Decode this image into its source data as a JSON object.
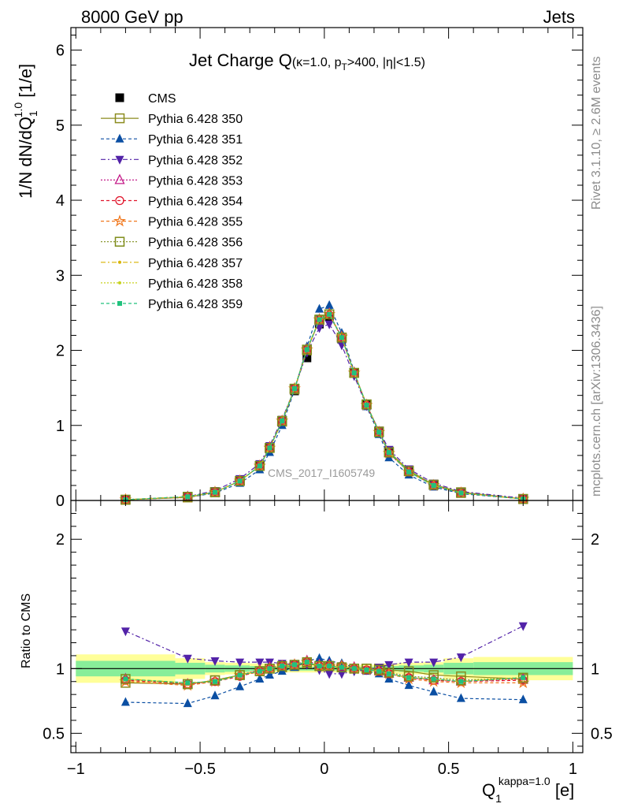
{
  "header": {
    "left": "8000 GeV pp",
    "right": "Jets"
  },
  "plot_title": {
    "main": "Jet Charge Q",
    "sub_kappa": "(κ=1.0, p",
    "sub_T": "T",
    "sub_rest": ">400, |η|<1.5)"
  },
  "axes": {
    "top_ylabel": "1/N dN/dQ",
    "top_ylabel_sub": "1",
    "top_ylabel_sup": "1.0",
    "top_ylabel_unit": " [1/e]",
    "bottom_ylabel": "Ratio to CMS",
    "xlabel_main": "Q",
    "xlabel_sub": "1",
    "xlabel_sup": "kappa=1.0",
    "xlabel_unit": " [e]"
  },
  "side_labels": {
    "rivet": "Rivet 3.1.10, ≥ 2.6M events",
    "mcplots": "mcplots.cern.ch [arXiv:1306.3436]"
  },
  "watermark": "CMS_2017_I1605749",
  "legend": [
    {
      "label": "CMS",
      "color": "#000000",
      "marker": "filled-square",
      "dash": "none"
    },
    {
      "label": "Pythia 6.428 350",
      "color": "#8c8c1f",
      "marker": "open-square",
      "dash": "solid"
    },
    {
      "label": "Pythia 6.428 351",
      "color": "#0b4fa3",
      "marker": "filled-triangle-up",
      "dash": "4,3"
    },
    {
      "label": "Pythia 6.428 352",
      "color": "#5222a8",
      "marker": "filled-triangle-down",
      "dash": "6,3,2,3"
    },
    {
      "label": "Pythia 6.428 353",
      "color": "#c41d8a",
      "marker": "open-triangle-up",
      "dash": "2,2"
    },
    {
      "label": "Pythia 6.428 354",
      "color": "#e0142b",
      "marker": "open-circle",
      "dash": "4,3"
    },
    {
      "label": "Pythia 6.428 355",
      "color": "#f0781e",
      "marker": "open-star",
      "dash": "4,3"
    },
    {
      "label": "Pythia 6.428 356",
      "color": "#7f8c1a",
      "marker": "open-square",
      "dash": "2,2"
    },
    {
      "label": "Pythia 6.428 357",
      "color": "#d9b400",
      "marker": "small-dot",
      "dash": "6,3,2,3"
    },
    {
      "label": "Pythia 6.428 358",
      "color": "#c8d21e",
      "marker": "small-dot",
      "dash": "2,2"
    },
    {
      "label": "Pythia 6.428 359",
      "color": "#21c27d",
      "marker": "filled-square-small",
      "dash": "4,3"
    }
  ],
  "chart_data": [
    {
      "type": "line",
      "panel": "main",
      "title": "Jet Charge Q(κ=1.0, pT>400, |η|<1.5)",
      "xlabel": "Q1^kappa=1.0 [e]",
      "ylabel": "1/N dN/dQ1^1.0 [1/e]",
      "xlim": [
        -1.02,
        1.04
      ],
      "ylim": [
        0,
        6.3
      ],
      "x_ticks": [
        -1,
        -0.5,
        0,
        0.5,
        1
      ],
      "x_tick_labels": [
        "−1",
        "−0.5",
        "0",
        "0.5",
        "1"
      ],
      "y_ticks": [
        0,
        1,
        2,
        3,
        4,
        5,
        6
      ],
      "y_tick_labels": [
        "0",
        "1",
        "2",
        "3",
        "4",
        "5",
        "6"
      ],
      "x": [
        -0.8,
        -0.55,
        -0.44,
        -0.34,
        -0.26,
        -0.22,
        -0.17,
        -0.12,
        -0.07,
        -0.02,
        0.02,
        0.07,
        0.12,
        0.17,
        0.22,
        0.26,
        0.34,
        0.44,
        0.55,
        0.8
      ],
      "series": [
        {
          "name": "CMS",
          "values": [
            0.01,
            0.05,
            0.12,
            0.27,
            0.47,
            0.7,
            1.05,
            1.46,
            1.9,
            2.35,
            2.45,
            2.15,
            1.7,
            1.28,
            0.92,
            0.66,
            0.4,
            0.22,
            0.11,
            0.02
          ]
        },
        {
          "name": "Pythia 6.428 350",
          "values": [
            0.01,
            0.04,
            0.11,
            0.26,
            0.46,
            0.7,
            1.05,
            1.48,
            2.0,
            2.4,
            2.48,
            2.17,
            1.7,
            1.28,
            0.92,
            0.65,
            0.4,
            0.21,
            0.11,
            0.02
          ]
        },
        {
          "name": "Pythia 6.428 351",
          "values": [
            0.01,
            0.04,
            0.1,
            0.23,
            0.41,
            0.64,
            1.0,
            1.47,
            2.05,
            2.55,
            2.6,
            2.23,
            1.72,
            1.25,
            0.88,
            0.57,
            0.34,
            0.18,
            0.09,
            0.02
          ]
        },
        {
          "name": "Pythia 6.428 352",
          "values": [
            0.01,
            0.05,
            0.13,
            0.29,
            0.49,
            0.73,
            1.08,
            1.49,
            1.97,
            2.3,
            2.35,
            2.07,
            1.66,
            1.26,
            0.93,
            0.68,
            0.42,
            0.23,
            0.12,
            0.03
          ]
        },
        {
          "name": "Pythia 6.428 353",
          "values": [
            0.01,
            0.05,
            0.11,
            0.26,
            0.46,
            0.71,
            1.06,
            1.49,
            2.01,
            2.41,
            2.49,
            2.18,
            1.7,
            1.27,
            0.91,
            0.63,
            0.38,
            0.2,
            0.1,
            0.02
          ]
        },
        {
          "name": "Pythia 6.428 354",
          "values": [
            0.01,
            0.05,
            0.11,
            0.26,
            0.46,
            0.7,
            1.06,
            1.49,
            2.01,
            2.4,
            2.47,
            2.17,
            1.7,
            1.27,
            0.91,
            0.63,
            0.38,
            0.2,
            0.1,
            0.02
          ]
        },
        {
          "name": "Pythia 6.428 355",
          "values": [
            0.01,
            0.04,
            0.11,
            0.26,
            0.46,
            0.7,
            1.06,
            1.49,
            2.01,
            2.41,
            2.48,
            2.18,
            1.7,
            1.27,
            0.91,
            0.63,
            0.38,
            0.2,
            0.1,
            0.02
          ]
        },
        {
          "name": "Pythia 6.428 356",
          "values": [
            0.01,
            0.05,
            0.11,
            0.26,
            0.46,
            0.7,
            1.06,
            1.49,
            2.01,
            2.41,
            2.48,
            2.17,
            1.7,
            1.28,
            0.91,
            0.64,
            0.39,
            0.21,
            0.1,
            0.02
          ]
        },
        {
          "name": "Pythia 6.428 357",
          "values": [
            0.01,
            0.05,
            0.11,
            0.26,
            0.46,
            0.7,
            1.06,
            1.49,
            2.01,
            2.41,
            2.48,
            2.17,
            1.7,
            1.27,
            0.91,
            0.64,
            0.38,
            0.2,
            0.1,
            0.02
          ]
        },
        {
          "name": "Pythia 6.428 358",
          "values": [
            0.01,
            0.05,
            0.11,
            0.26,
            0.46,
            0.7,
            1.06,
            1.49,
            2.01,
            2.41,
            2.48,
            2.17,
            1.7,
            1.27,
            0.91,
            0.64,
            0.38,
            0.2,
            0.1,
            0.02
          ]
        },
        {
          "name": "Pythia 6.428 359",
          "values": [
            0.01,
            0.05,
            0.11,
            0.26,
            0.46,
            0.7,
            1.06,
            1.49,
            2.01,
            2.41,
            2.48,
            2.17,
            1.7,
            1.27,
            0.91,
            0.64,
            0.38,
            0.2,
            0.1,
            0.02
          ]
        }
      ]
    },
    {
      "type": "line",
      "panel": "ratio",
      "ylabel": "Ratio to CMS",
      "xlim": [
        -1.02,
        1.04
      ],
      "ylim": [
        0.35,
        2.3
      ],
      "y_ticks": [
        0.5,
        1,
        2
      ],
      "y_tick_labels": [
        "0.5",
        "1",
        "2"
      ],
      "bands": {
        "edges": [
          -1.0,
          -0.6,
          -0.48,
          -0.4,
          -0.3,
          -0.24,
          -0.2,
          -0.14,
          -0.1,
          -0.04,
          0.0,
          0.04,
          0.1,
          0.14,
          0.2,
          0.24,
          0.3,
          0.4,
          0.48,
          0.6,
          1.0
        ],
        "yellow_half_width": [
          0.11,
          0.08,
          0.05,
          0.045,
          0.04,
          0.035,
          0.03,
          0.03,
          0.03,
          0.03,
          0.03,
          0.03,
          0.03,
          0.03,
          0.035,
          0.04,
          0.045,
          0.05,
          0.08,
          0.09
        ],
        "green_half_width": [
          0.06,
          0.045,
          0.03,
          0.025,
          0.02,
          0.018,
          0.015,
          0.015,
          0.015,
          0.015,
          0.015,
          0.015,
          0.015,
          0.015,
          0.018,
          0.02,
          0.025,
          0.03,
          0.045,
          0.05
        ]
      },
      "x": [
        -0.8,
        -0.55,
        -0.44,
        -0.34,
        -0.26,
        -0.22,
        -0.17,
        -0.12,
        -0.07,
        -0.02,
        0.02,
        0.07,
        0.12,
        0.17,
        0.22,
        0.26,
        0.34,
        0.44,
        0.55,
        0.8
      ],
      "series": [
        {
          "name": "Pythia 6.428 350",
          "values": [
            0.89,
            0.88,
            0.91,
            0.95,
            0.98,
            1.0,
            1.01,
            1.02,
            1.04,
            1.02,
            1.02,
            1.01,
            1.0,
            1.0,
            1.0,
            0.99,
            0.98,
            0.95,
            0.94,
            0.92
          ]
        },
        {
          "name": "Pythia 6.428 351",
          "values": [
            0.74,
            0.73,
            0.79,
            0.86,
            0.92,
            0.95,
            0.98,
            1.01,
            1.06,
            1.08,
            1.06,
            1.04,
            1.01,
            0.98,
            0.96,
            0.92,
            0.87,
            0.82,
            0.77,
            0.76
          ]
        },
        {
          "name": "Pythia 6.428 352",
          "values": [
            1.29,
            1.08,
            1.06,
            1.05,
            1.05,
            1.05,
            1.04,
            1.03,
            1.03,
            0.99,
            0.96,
            0.96,
            0.98,
            0.99,
            1.01,
            1.03,
            1.05,
            1.05,
            1.09,
            1.33
          ]
        },
        {
          "name": "Pythia 6.428 353",
          "values": [
            0.92,
            0.88,
            0.9,
            0.95,
            0.99,
            1.01,
            1.02,
            1.03,
            1.06,
            1.03,
            1.03,
            1.02,
            1.01,
            0.99,
            0.98,
            0.96,
            0.93,
            0.91,
            0.9,
            0.92
          ]
        },
        {
          "name": "Pythia 6.428 354",
          "values": [
            0.91,
            0.88,
            0.9,
            0.94,
            0.98,
            1.0,
            1.02,
            1.03,
            1.05,
            1.02,
            1.02,
            1.02,
            1.0,
            0.99,
            0.98,
            0.96,
            0.93,
            0.91,
            0.9,
            0.91
          ]
        },
        {
          "name": "Pythia 6.428 355",
          "values": [
            0.9,
            0.87,
            0.9,
            0.95,
            0.98,
            1.0,
            1.02,
            1.03,
            1.05,
            1.02,
            1.02,
            1.02,
            1.0,
            0.99,
            0.98,
            0.96,
            0.92,
            0.9,
            0.89,
            0.89
          ]
        },
        {
          "name": "Pythia 6.428 356",
          "values": [
            0.92,
            0.88,
            0.91,
            0.95,
            0.98,
            1.0,
            1.02,
            1.03,
            1.05,
            1.02,
            1.02,
            1.01,
            1.0,
            1.0,
            0.99,
            0.97,
            0.94,
            0.93,
            0.91,
            0.93
          ]
        },
        {
          "name": "Pythia 6.428 357",
          "values": [
            0.92,
            0.89,
            0.9,
            0.95,
            0.98,
            1.0,
            1.02,
            1.03,
            1.05,
            1.02,
            1.02,
            1.01,
            1.0,
            0.99,
            0.98,
            0.96,
            0.93,
            0.92,
            0.9,
            0.93
          ]
        },
        {
          "name": "Pythia 6.428 358",
          "values": [
            0.92,
            0.89,
            0.9,
            0.95,
            0.98,
            1.0,
            1.02,
            1.03,
            1.05,
            1.02,
            1.02,
            1.01,
            1.0,
            0.99,
            0.98,
            0.96,
            0.93,
            0.92,
            0.9,
            0.93
          ]
        },
        {
          "name": "Pythia 6.428 359",
          "values": [
            0.92,
            0.89,
            0.9,
            0.95,
            0.98,
            1.0,
            1.02,
            1.03,
            1.05,
            1.02,
            1.02,
            1.01,
            1.0,
            0.99,
            0.98,
            0.96,
            0.93,
            0.92,
            0.9,
            0.93
          ]
        }
      ]
    }
  ]
}
